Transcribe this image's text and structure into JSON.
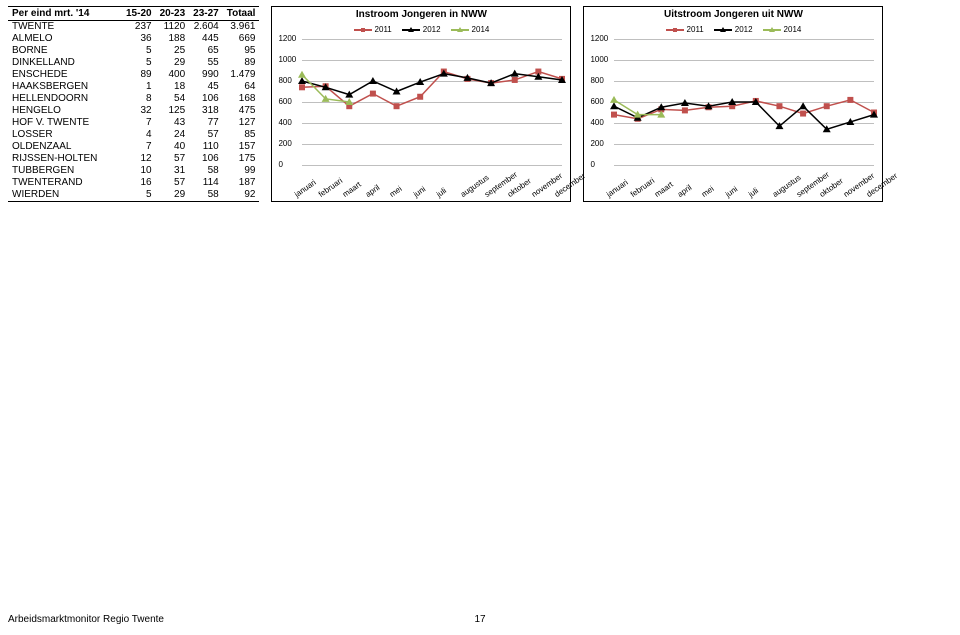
{
  "table": {
    "headers": [
      "Per eind mrt. '14",
      "15-20",
      "20-23",
      "23-27",
      "Totaal"
    ],
    "rows": [
      [
        "TWENTE",
        "237",
        "1120",
        "2.604",
        "3.961"
      ],
      [
        "ALMELO",
        "36",
        "188",
        "445",
        "669"
      ],
      [
        "BORNE",
        "5",
        "25",
        "65",
        "95"
      ],
      [
        "DINKELLAND",
        "5",
        "29",
        "55",
        "89"
      ],
      [
        "ENSCHEDE",
        "89",
        "400",
        "990",
        "1.479"
      ],
      [
        "HAAKSBERGEN",
        "1",
        "18",
        "45",
        "64"
      ],
      [
        "HELLENDOORN",
        "8",
        "54",
        "106",
        "168"
      ],
      [
        "HENGELO",
        "32",
        "125",
        "318",
        "475"
      ],
      [
        "HOF V. TWENTE",
        "7",
        "43",
        "77",
        "127"
      ],
      [
        "LOSSER",
        "4",
        "24",
        "57",
        "85"
      ],
      [
        "OLDENZAAL",
        "7",
        "40",
        "110",
        "157"
      ],
      [
        "RIJSSEN-HOLTEN",
        "12",
        "57",
        "106",
        "175"
      ],
      [
        "TUBBERGEN",
        "10",
        "31",
        "58",
        "99"
      ],
      [
        "TWENTERAND",
        "16",
        "57",
        "114",
        "187"
      ],
      [
        "WIERDEN",
        "5",
        "29",
        "58",
        "92"
      ]
    ]
  },
  "months": [
    "januari",
    "februari",
    "maart",
    "april",
    "mei",
    "juni",
    "juli",
    "augustus",
    "september",
    "oktober",
    "november",
    "december"
  ],
  "chart_common": {
    "ylim": [
      0,
      1200
    ],
    "ytick_step": 200,
    "grid_color": "#bfbfbf",
    "background_color": "#ffffff",
    "legend": [
      {
        "label": "2011",
        "color": "#c0504d",
        "marker": "square"
      },
      {
        "label": "2012",
        "color": "#000000",
        "marker": "triangle"
      },
      {
        "label": "2014",
        "color": "#9bbb59",
        "marker": "triangle"
      }
    ],
    "fontsize_title": 10,
    "fontsize_axis": 8
  },
  "chart_left": {
    "title": "Instroom Jongeren in NWW",
    "series": {
      "2011": [
        740,
        750,
        560,
        680,
        560,
        650,
        890,
        820,
        780,
        810,
        890,
        820
      ],
      "2012": [
        800,
        740,
        670,
        800,
        700,
        790,
        870,
        830,
        780,
        870,
        840,
        810
      ],
      "2014": [
        860,
        630,
        600
      ]
    }
  },
  "chart_right": {
    "title": "Uitstroom Jongeren uit NWW",
    "series": {
      "2011": [
        480,
        440,
        530,
        520,
        550,
        560,
        610,
        560,
        490,
        560,
        620,
        500
      ],
      "2012": [
        560,
        450,
        550,
        590,
        560,
        600,
        600,
        370,
        560,
        340,
        410,
        480
      ],
      "2014": [
        620,
        480,
        480
      ]
    }
  },
  "footer": {
    "text": "Arbeidsmarktmonitor Regio Twente",
    "page": "17"
  },
  "text_color": "#000000"
}
